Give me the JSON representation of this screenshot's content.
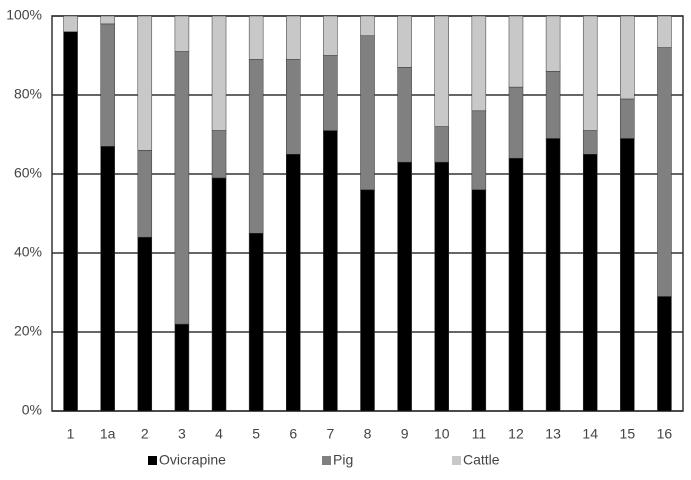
{
  "chart_data": {
    "type": "stacked_bar",
    "categories": [
      "1",
      "1a",
      "2",
      "3",
      "4",
      "5",
      "6",
      "7",
      "8",
      "9",
      "10",
      "11",
      "12",
      "13",
      "14",
      "15",
      "16"
    ],
    "series": [
      {
        "name": "Ovicrapine",
        "color": "#000000",
        "values": [
          96,
          67,
          44,
          22,
          59,
          45,
          65,
          71,
          56,
          63,
          63,
          56,
          64,
          69,
          65,
          69,
          29
        ]
      },
      {
        "name": "Pig",
        "color": "#808080",
        "values": [
          0,
          31,
          22,
          69,
          12,
          44,
          24,
          19,
          39,
          24,
          9,
          20,
          18,
          17,
          6,
          10,
          63
        ]
      },
      {
        "name": "Cattle",
        "color": "#c8c8c8",
        "values": [
          4,
          2,
          34,
          9,
          29,
          11,
          11,
          10,
          5,
          13,
          28,
          24,
          18,
          14,
          29,
          21,
          8
        ]
      }
    ],
    "ylim": [
      0,
      100
    ],
    "yticks": [
      {
        "value": 0,
        "label": "0%"
      },
      {
        "value": 20,
        "label": "20%"
      },
      {
        "value": 40,
        "label": "40%"
      },
      {
        "value": 60,
        "label": "60%"
      },
      {
        "value": 80,
        "label": "80%"
      },
      {
        "value": 100,
        "label": "100%"
      }
    ],
    "grid": true,
    "legend": "bottom"
  }
}
